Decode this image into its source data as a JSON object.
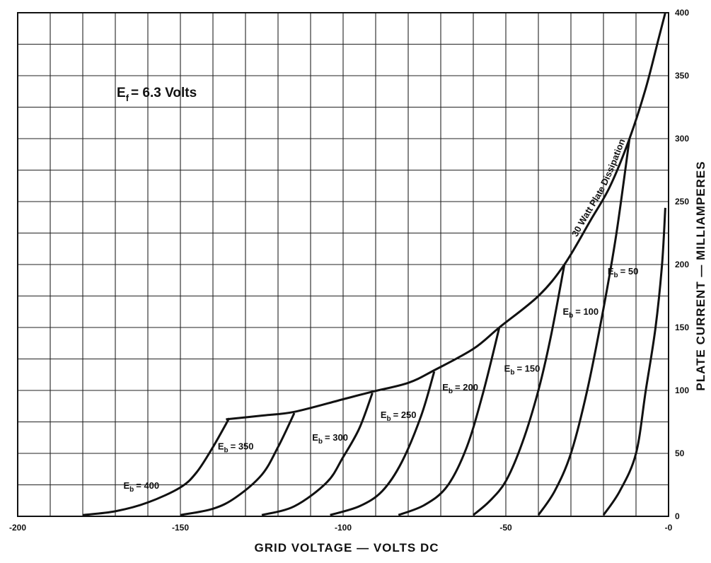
{
  "chart_data": {
    "type": "line",
    "title": "",
    "xlabel": "GRID VOLTAGE — VOLTS DC",
    "ylabel": "PLATE CURRENT — MILLIAMPERES",
    "xlim": [
      -200,
      0
    ],
    "ylim": [
      0,
      400
    ],
    "x_ticks": [
      "-200",
      "-150",
      "-100",
      "-50",
      "-0"
    ],
    "y_ticks": [
      "0",
      "50",
      "100",
      "150",
      "200",
      "250",
      "300",
      "350",
      "400"
    ],
    "grid": true,
    "annotations": {
      "filament": "E",
      "filament_sub": "f",
      "filament_value": "= 6.3 Volts",
      "dissipation": "30 Watt Plate Dissipation"
    },
    "series": [
      {
        "label_main": "E",
        "label_sub": "b",
        "label_eq": "= 400",
        "points": [
          [
            -180,
            1
          ],
          [
            -170,
            4
          ],
          [
            -160,
            11
          ],
          [
            -150,
            23
          ],
          [
            -145,
            35
          ],
          [
            -140,
            55
          ],
          [
            -135,
            78
          ]
        ]
      },
      {
        "label_main": "E",
        "label_sub": "b",
        "label_eq": "= 350",
        "points": [
          [
            -150,
            1
          ],
          [
            -140,
            6
          ],
          [
            -133,
            15
          ],
          [
            -125,
            33
          ],
          [
            -120,
            55
          ],
          [
            -115,
            82
          ]
        ]
      },
      {
        "label_main": "E",
        "label_sub": "b",
        "label_eq": "= 300",
        "points": [
          [
            -125,
            1
          ],
          [
            -115,
            8
          ],
          [
            -105,
            27
          ],
          [
            -100,
            47
          ],
          [
            -95,
            70
          ],
          [
            -91,
            98
          ]
        ]
      },
      {
        "label_main": "E",
        "label_sub": "b",
        "label_eq": "= 250",
        "points": [
          [
            -104,
            1
          ],
          [
            -95,
            8
          ],
          [
            -88,
            20
          ],
          [
            -82,
            43
          ],
          [
            -76,
            80
          ],
          [
            -72,
            115
          ]
        ]
      },
      {
        "label_main": "E",
        "label_sub": "b",
        "label_eq": "= 200",
        "points": [
          [
            -83,
            1
          ],
          [
            -75,
            9
          ],
          [
            -68,
            24
          ],
          [
            -62,
            55
          ],
          [
            -57,
            98
          ],
          [
            -52,
            150
          ]
        ]
      },
      {
        "label_main": "E",
        "label_sub": "b",
        "label_eq": "= 150",
        "points": [
          [
            -60,
            1
          ],
          [
            -55,
            12
          ],
          [
            -50,
            28
          ],
          [
            -45,
            58
          ],
          [
            -40,
            100
          ],
          [
            -36,
            145
          ],
          [
            -32,
            200
          ]
        ]
      },
      {
        "label_main": "E",
        "label_sub": "b",
        "label_eq": "= 100",
        "points": [
          [
            -40,
            1
          ],
          [
            -35,
            20
          ],
          [
            -30,
            50
          ],
          [
            -25,
            100
          ],
          [
            -20,
            165
          ],
          [
            -16,
            225
          ],
          [
            -12,
            300
          ]
        ]
      },
      {
        "label_main": "E",
        "label_sub": "b",
        "label_eq": "= 50",
        "points": [
          [
            -20,
            1
          ],
          [
            -15,
            20
          ],
          [
            -10,
            50
          ],
          [
            -7,
            100
          ],
          [
            -4,
            150
          ],
          [
            -2,
            200
          ],
          [
            -1,
            245
          ]
        ]
      }
    ],
    "dissipation_curve": [
      [
        -136,
        77
      ],
      [
        -125,
        80
      ],
      [
        -115,
        83
      ],
      [
        -100,
        93
      ],
      [
        -91,
        99
      ],
      [
        -80,
        106
      ],
      [
        -72,
        116
      ],
      [
        -60,
        133
      ],
      [
        -52,
        150
      ],
      [
        -40,
        175
      ],
      [
        -32,
        200
      ],
      [
        -24,
        235
      ],
      [
        -18,
        262
      ],
      [
        -12,
        300
      ],
      [
        -7,
        340
      ],
      [
        -3,
        380
      ],
      [
        -1,
        400
      ]
    ]
  }
}
